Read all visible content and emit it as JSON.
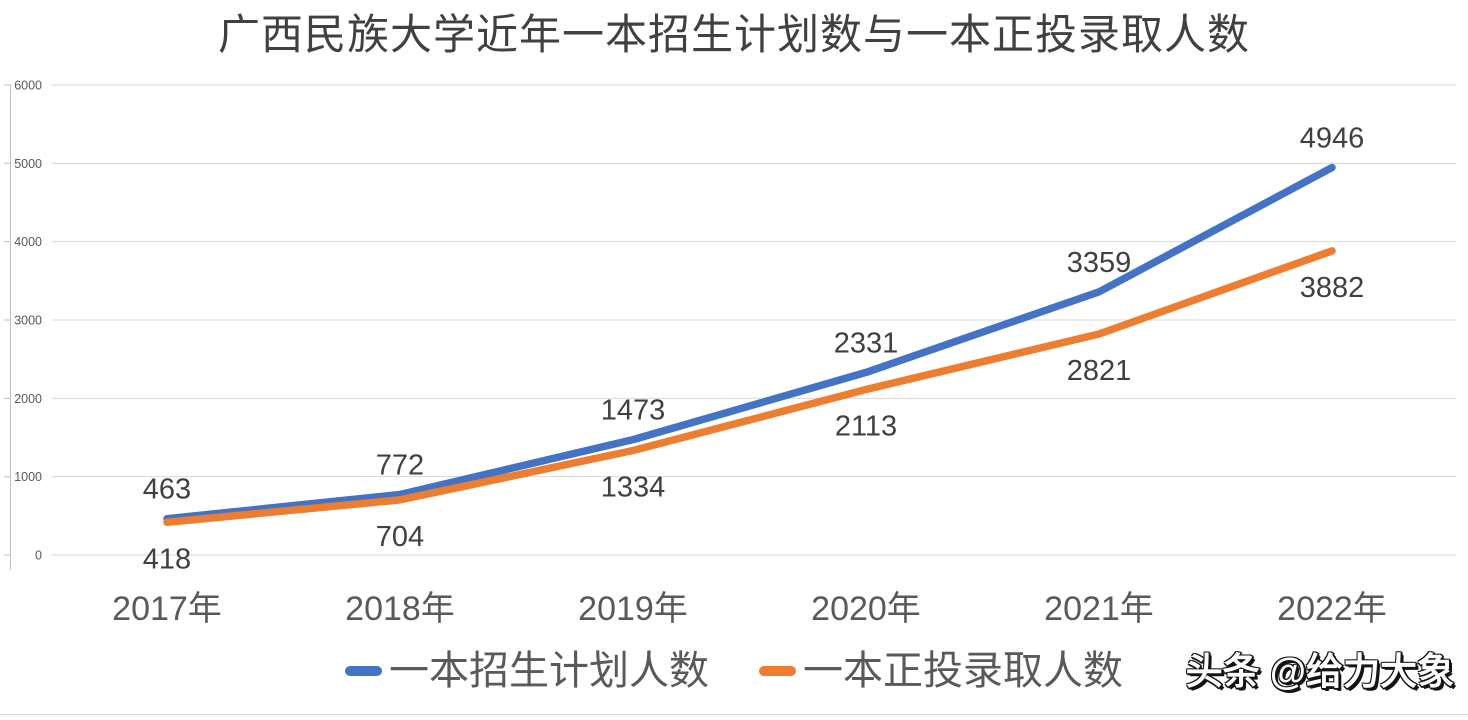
{
  "chart_data": {
    "type": "line",
    "title": "广西民族大学近年一本招生计划数与一本正投录取人数",
    "categories": [
      "2017年",
      "2018年",
      "2019年",
      "2020年",
      "2021年",
      "2022年"
    ],
    "series": [
      {
        "name": "一本招生计划人数",
        "color": "#4472C4",
        "values": [
          463,
          772,
          1473,
          2331,
          3359,
          4946
        ],
        "data_label_position": "above"
      },
      {
        "name": "一本正投录取人数",
        "color": "#ED7D31",
        "values": [
          418,
          704,
          1334,
          2113,
          2821,
          3882
        ],
        "data_label_position": "below"
      }
    ],
    "xlabel": "",
    "ylabel": "",
    "ylim": [
      0,
      6000
    ],
    "yticks": [
      0,
      1000,
      2000,
      3000,
      4000,
      5000,
      6000
    ],
    "grid": true,
    "legend_position": "bottom"
  },
  "watermark": {
    "text": "头条 @给力大象"
  },
  "colors": {
    "series_blue": "#4472C4",
    "series_orange": "#ED7D31",
    "gridline": "#D9D9D9",
    "axis_line": "#BFBFBF",
    "axis_label": "#595959",
    "data_label": "#404040",
    "title": "#404040",
    "background": "#FFFFFF"
  }
}
